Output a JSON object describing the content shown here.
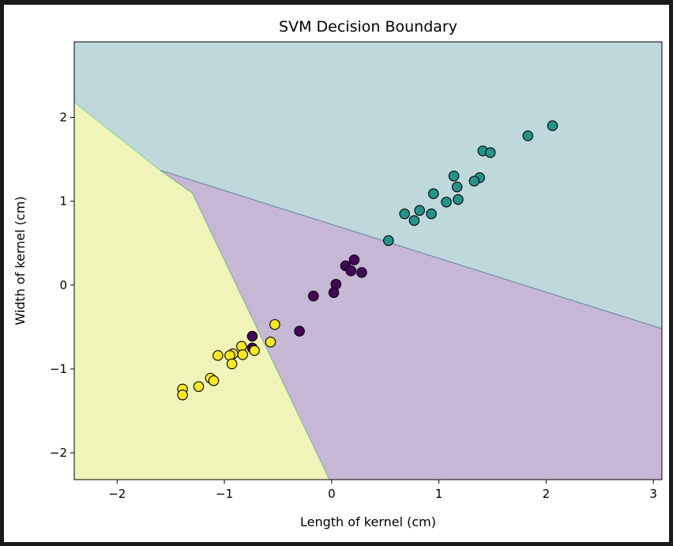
{
  "chart_data": {
    "type": "scatter",
    "title": "SVM Decision Boundary",
    "xlabel": "Length of kernel (cm)",
    "ylabel": "Width of kernel (cm)",
    "xlim": [
      -2.4,
      3.08
    ],
    "ylim": [
      -2.32,
      2.9
    ],
    "xticks": [
      -2,
      -1,
      0,
      1,
      2,
      3
    ],
    "yticks": [
      -2,
      -1,
      0,
      1,
      2
    ],
    "grid": false,
    "regions": [
      {
        "class": "teal",
        "color": "#bfd8dc"
      },
      {
        "class": "purple",
        "color": "#c6b7d4"
      },
      {
        "class": "yellow",
        "color": "#f0f4b8"
      }
    ],
    "boundaries": [
      {
        "between": "yellow-teal",
        "points": [
          [
            -2.4,
            2.18
          ],
          [
            -1.6,
            1.37
          ]
        ]
      },
      {
        "between": "purple-teal",
        "points": [
          [
            -1.6,
            1.37
          ],
          [
            3.08,
            -0.52
          ]
        ]
      },
      {
        "between": "yellow-teal",
        "points": [
          [
            -1.6,
            1.37
          ],
          [
            -1.3,
            1.1
          ]
        ]
      },
      {
        "between": "yellow-purple",
        "points": [
          [
            -1.6,
            1.37
          ],
          [
            -1.3,
            1.1
          ]
        ]
      },
      {
        "between": "yellow-purple",
        "points": [
          [
            -1.3,
            1.1
          ],
          [
            -0.02,
            -2.32
          ]
        ]
      }
    ],
    "series": [
      {
        "color": "#26938b",
        "points": [
          [
            2.06,
            1.9
          ],
          [
            1.83,
            1.78
          ],
          [
            1.41,
            1.6
          ],
          [
            1.48,
            1.58
          ],
          [
            1.14,
            1.3
          ],
          [
            1.38,
            1.28
          ],
          [
            1.33,
            1.24
          ],
          [
            1.17,
            1.17
          ],
          [
            0.95,
            1.09
          ],
          [
            1.07,
            0.99
          ],
          [
            1.18,
            1.02
          ],
          [
            0.68,
            0.85
          ],
          [
            0.82,
            0.89
          ],
          [
            0.93,
            0.85
          ],
          [
            0.77,
            0.77
          ],
          [
            0.53,
            0.53
          ]
        ]
      },
      {
        "color": "#45065a",
        "points": [
          [
            0.21,
            0.3
          ],
          [
            0.13,
            0.23
          ],
          [
            0.18,
            0.17
          ],
          [
            0.28,
            0.15
          ],
          [
            0.04,
            0.01
          ],
          [
            0.02,
            -0.09
          ],
          [
            -0.17,
            -0.13
          ],
          [
            -0.3,
            -0.55
          ],
          [
            -0.74,
            -0.61
          ],
          [
            -0.74,
            -0.75
          ]
        ]
      },
      {
        "color": "#fbe725",
        "points": [
          [
            -0.53,
            -0.47
          ],
          [
            -0.57,
            -0.68
          ],
          [
            -0.84,
            -0.73
          ],
          [
            -0.72,
            -0.78
          ],
          [
            -0.83,
            -0.83
          ],
          [
            -0.92,
            -0.82
          ],
          [
            -0.95,
            -0.84
          ],
          [
            -1.06,
            -0.84
          ],
          [
            -0.93,
            -0.94
          ],
          [
            -1.13,
            -1.11
          ],
          [
            -1.1,
            -1.14
          ],
          [
            -1.24,
            -1.21
          ],
          [
            -1.39,
            -1.24
          ],
          [
            -1.39,
            -1.31
          ]
        ]
      }
    ]
  }
}
